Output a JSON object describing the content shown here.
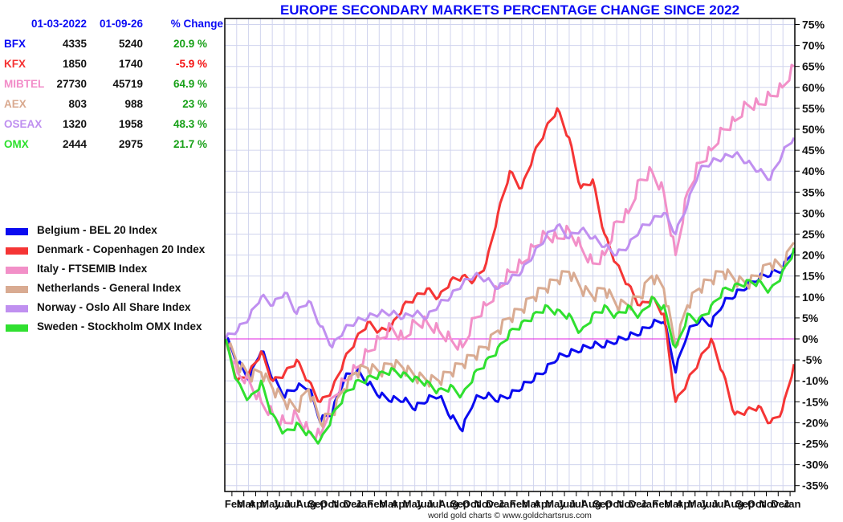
{
  "title": "EUROPE SECONDARY MARKETS PERCENTAGE CHANGE SINCE 2022",
  "footer": "world gold charts © www.goldchartsrus.com",
  "stats_table": {
    "headers": [
      "01-03-2022",
      "01-09-26",
      "% Change"
    ],
    "rows": [
      {
        "name": "BFX",
        "start": "4335",
        "end": "5240",
        "change": "20.9 %",
        "name_color": "#0b0bf5",
        "change_color": "#17a017"
      },
      {
        "name": "KFX",
        "start": "1850",
        "end": "1740",
        "change": "-5.9 %",
        "name_color": "#f53232",
        "change_color": "#f50f0f"
      },
      {
        "name": "MIBTEL",
        "start": "27730",
        "end": "45719",
        "change": "64.9 %",
        "name_color": "#f28cc8",
        "change_color": "#17a017"
      },
      {
        "name": "AEX",
        "start": "803",
        "end": "988",
        "change": "23 %",
        "name_color": "#d9a98f",
        "change_color": "#17a017"
      },
      {
        "name": "OSEAX",
        "start": "1320",
        "end": "1958",
        "change": "48.3 %",
        "name_color": "#bf8ff0",
        "change_color": "#17a017"
      },
      {
        "name": "OMX",
        "start": "2444",
        "end": "2975",
        "change": "21.7 %",
        "name_color": "#2de02d",
        "change_color": "#17a017"
      }
    ]
  },
  "chart_data": {
    "type": "line",
    "title": "EUROPE SECONDARY MARKETS PERCENTAGE CHANGE SINCE 2022",
    "xlabel": "",
    "ylabel": "",
    "ylim": [
      -35,
      75
    ],
    "y_ticks": [
      "75%",
      "70%",
      "65%",
      "60%",
      "55%",
      "50%",
      "45%",
      "40%",
      "35%",
      "30%",
      "25%",
      "20%",
      "15%",
      "10%",
      "5%",
      "0%",
      "-5%",
      "-10%",
      "-15%",
      "-20%",
      "-25%",
      "-30%",
      "-35%"
    ],
    "y_tick_values": [
      75,
      70,
      65,
      60,
      55,
      50,
      45,
      40,
      35,
      30,
      25,
      20,
      15,
      10,
      5,
      0,
      -5,
      -10,
      -15,
      -20,
      -25,
      -30,
      -35
    ],
    "x_ticks": [
      "Feb",
      "Mar",
      "Apr",
      "May",
      "Jun",
      "Jul",
      "Aug",
      "Sep",
      "Oct",
      "Nov",
      "Dec",
      "Jan",
      "Feb",
      "Mar",
      "Apr",
      "May",
      "Jun",
      "Jul",
      "Aug",
      "Sep",
      "Oct",
      "Nov",
      "Dec",
      "Jan",
      "Feb",
      "Mar",
      "Apr",
      "May",
      "Jun",
      "Jul",
      "Aug",
      "Sep",
      "Oct",
      "Nov",
      "Dec",
      "Jan",
      "Feb",
      "Mar",
      "Apr",
      "May",
      "Jun",
      "Jul",
      "Aug",
      "Sep",
      "Oct",
      "Nov",
      "Dec",
      "Jan"
    ],
    "grid": true,
    "zero_line_color": "#e020e0",
    "legend_position": "left",
    "series": [
      {
        "name": "Belgium - BEL 20 Index",
        "color": "#0b0bf0",
        "values": [
          0,
          -6,
          -10,
          -3,
          -10,
          -14,
          -12,
          -12,
          -20,
          -18,
          -10,
          -8,
          -11,
          -14,
          -15,
          -15,
          -17,
          -15,
          -14,
          -19,
          -22,
          -15,
          -14,
          -15,
          -14,
          -12,
          -10,
          -8,
          -5,
          -4,
          -3,
          -2,
          -2,
          -1,
          0,
          1,
          3,
          4,
          -8,
          1,
          4,
          3,
          8,
          10,
          12,
          14,
          15,
          16,
          21
        ]
      },
      {
        "name": "Denmark - Copenhagen 20 Index",
        "color": "#f53535",
        "values": [
          0,
          -10,
          -8,
          -3,
          -10,
          -8,
          -5,
          -10,
          -15,
          -12,
          -5,
          0,
          4,
          2,
          3,
          8,
          10,
          12,
          10,
          14,
          15,
          14,
          18,
          30,
          40,
          36,
          44,
          50,
          55,
          48,
          36,
          38,
          25,
          18,
          13,
          8,
          10,
          6,
          -15,
          -10,
          -5,
          0,
          -8,
          -18,
          -17,
          -16,
          -20,
          -17,
          -6
        ]
      },
      {
        "name": "Italy - FTSEMIB Index",
        "color": "#f290c8",
        "values": [
          0,
          -8,
          -10,
          -15,
          -18,
          -20,
          -18,
          -22,
          -23,
          -14,
          -10,
          -7,
          -3,
          0,
          3,
          0,
          4,
          4,
          2,
          0,
          -2,
          5,
          8,
          12,
          16,
          18,
          22,
          25,
          24,
          26,
          22,
          18,
          20,
          28,
          30,
          38,
          40,
          35,
          20,
          35,
          42,
          45,
          50,
          52,
          56,
          56,
          58,
          60,
          65
        ]
      },
      {
        "name": "Netherlands - General Index",
        "color": "#d9ab92",
        "values": [
          0,
          -6,
          -9,
          -8,
          -12,
          -15,
          -17,
          -12,
          -20,
          -18,
          -12,
          -8,
          -7,
          -8,
          -6,
          -7,
          -9,
          -10,
          -10,
          -8,
          -6,
          -4,
          -2,
          2,
          5,
          7,
          10,
          12,
          14,
          16,
          12,
          10,
          12,
          8,
          8,
          10,
          15,
          12,
          -2,
          8,
          12,
          14,
          16,
          14,
          13,
          15,
          18,
          17,
          23
        ]
      },
      {
        "name": "Norway -  Oslo All Share Index",
        "color": "#c090f0",
        "values": [
          0,
          2,
          5,
          10,
          8,
          11,
          6,
          9,
          3,
          -2,
          2,
          4,
          5,
          6,
          6,
          5,
          6,
          5,
          8,
          10,
          13,
          15,
          14,
          12,
          14,
          16,
          20,
          24,
          27,
          24,
          26,
          24,
          22,
          20,
          22,
          26,
          28,
          30,
          25,
          32,
          40,
          42,
          43,
          44,
          42,
          40,
          38,
          44,
          48
        ]
      },
      {
        "name": "Sweden -  Stockholm OMX Index",
        "color": "#30e030",
        "values": [
          0,
          -10,
          -14,
          -10,
          -18,
          -22,
          -20,
          -22,
          -24,
          -18,
          -13,
          -10,
          -9,
          -8,
          -7,
          -8,
          -9,
          -10,
          -12,
          -11,
          -13,
          -8,
          -5,
          -2,
          2,
          4,
          6,
          8,
          7,
          6,
          2,
          6,
          8,
          6,
          8,
          6,
          10,
          8,
          -2,
          6,
          5,
          8,
          12,
          13,
          14,
          14,
          12,
          16,
          21.7
        ]
      }
    ]
  }
}
